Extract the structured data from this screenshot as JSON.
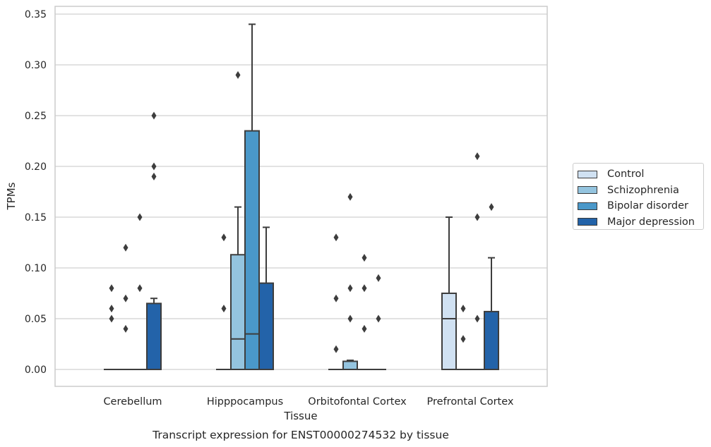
{
  "chart_data": {
    "type": "box",
    "title": "Transcript expression for ENST00000274532 by tissue",
    "xlabel": "Tissue",
    "ylabel": "TPMs",
    "ylim": [
      -0.017,
      0.358
    ],
    "yticks": [
      0.0,
      0.05,
      0.1,
      0.15,
      0.2,
      0.25,
      0.3,
      0.35
    ],
    "ytick_labels": [
      "0.00",
      "0.05",
      "0.10",
      "0.15",
      "0.20",
      "0.25",
      "0.30",
      "0.35"
    ],
    "categories": [
      "Cerebellum",
      "Hipppocampus",
      "Orbitofontal Cortex",
      "Prefrontal Cortex"
    ],
    "grid": "horizontal",
    "legend_position": "right",
    "series": [
      {
        "name": "Control",
        "color": "#d0e1f2",
        "boxes": [
          {
            "q1": 0,
            "median": 0,
            "q3": 0,
            "whisker_low": 0,
            "whisker_high": 0,
            "outliers": [
              0.05,
              0.06,
              0.08
            ]
          },
          {
            "q1": 0,
            "median": 0,
            "q3": 0,
            "whisker_low": 0,
            "whisker_high": 0,
            "outliers": [
              0.06,
              0.13
            ]
          },
          {
            "q1": 0,
            "median": 0,
            "q3": 0,
            "whisker_low": 0,
            "whisker_high": 0,
            "outliers": [
              0.02,
              0.07,
              0.13
            ]
          },
          {
            "q1": 0,
            "median": 0.05,
            "q3": 0.075,
            "whisker_low": 0,
            "whisker_high": 0.15,
            "outliers": []
          }
        ]
      },
      {
        "name": "Schizophrenia",
        "color": "#94c4df",
        "boxes": [
          {
            "q1": 0,
            "median": 0,
            "q3": 0,
            "whisker_low": 0,
            "whisker_high": 0,
            "outliers": [
              0.04,
              0.07,
              0.12
            ]
          },
          {
            "q1": 0,
            "median": 0.03,
            "q3": 0.113,
            "whisker_low": 0,
            "whisker_high": 0.16,
            "outliers": [
              0.29
            ]
          },
          {
            "q1": 0,
            "median": 0,
            "q3": 0.008,
            "whisker_low": 0,
            "whisker_high": 0.009,
            "outliers": [
              0.05,
              0.08,
              0.17
            ]
          },
          {
            "q1": 0,
            "median": 0,
            "q3": 0,
            "whisker_low": 0,
            "whisker_high": 0,
            "outliers": [
              0.03,
              0.06
            ]
          }
        ]
      },
      {
        "name": "Bipolar disorder",
        "color": "#4a98c9",
        "boxes": [
          {
            "q1": 0,
            "median": 0,
            "q3": 0,
            "whisker_low": 0,
            "whisker_high": 0,
            "outliers": [
              0.08,
              0.15
            ]
          },
          {
            "q1": 0,
            "median": 0.035,
            "q3": 0.235,
            "whisker_low": 0,
            "whisker_high": 0.34,
            "outliers": []
          },
          {
            "q1": 0,
            "median": 0,
            "q3": 0,
            "whisker_low": 0,
            "whisker_high": 0,
            "outliers": [
              0.04,
              0.08,
              0.11
            ]
          },
          {
            "q1": 0,
            "median": 0,
            "q3": 0,
            "whisker_low": 0,
            "whisker_high": 0,
            "outliers": [
              0.05,
              0.15,
              0.21
            ]
          }
        ]
      },
      {
        "name": "Major depression",
        "color": "#2363a9",
        "boxes": [
          {
            "q1": 0,
            "median": 0,
            "q3": 0.065,
            "whisker_low": 0,
            "whisker_high": 0.07,
            "outliers": [
              0.19,
              0.2,
              0.25
            ]
          },
          {
            "q1": 0,
            "median": 0,
            "q3": 0.085,
            "whisker_low": 0,
            "whisker_high": 0.14,
            "outliers": []
          },
          {
            "q1": 0,
            "median": 0,
            "q3": 0,
            "whisker_low": 0,
            "whisker_high": 0,
            "outliers": [
              0.05,
              0.09
            ]
          },
          {
            "q1": 0,
            "median": 0,
            "q3": 0.057,
            "whisker_low": 0,
            "whisker_high": 0.11,
            "outliers": [
              0.16
            ]
          }
        ]
      }
    ]
  }
}
